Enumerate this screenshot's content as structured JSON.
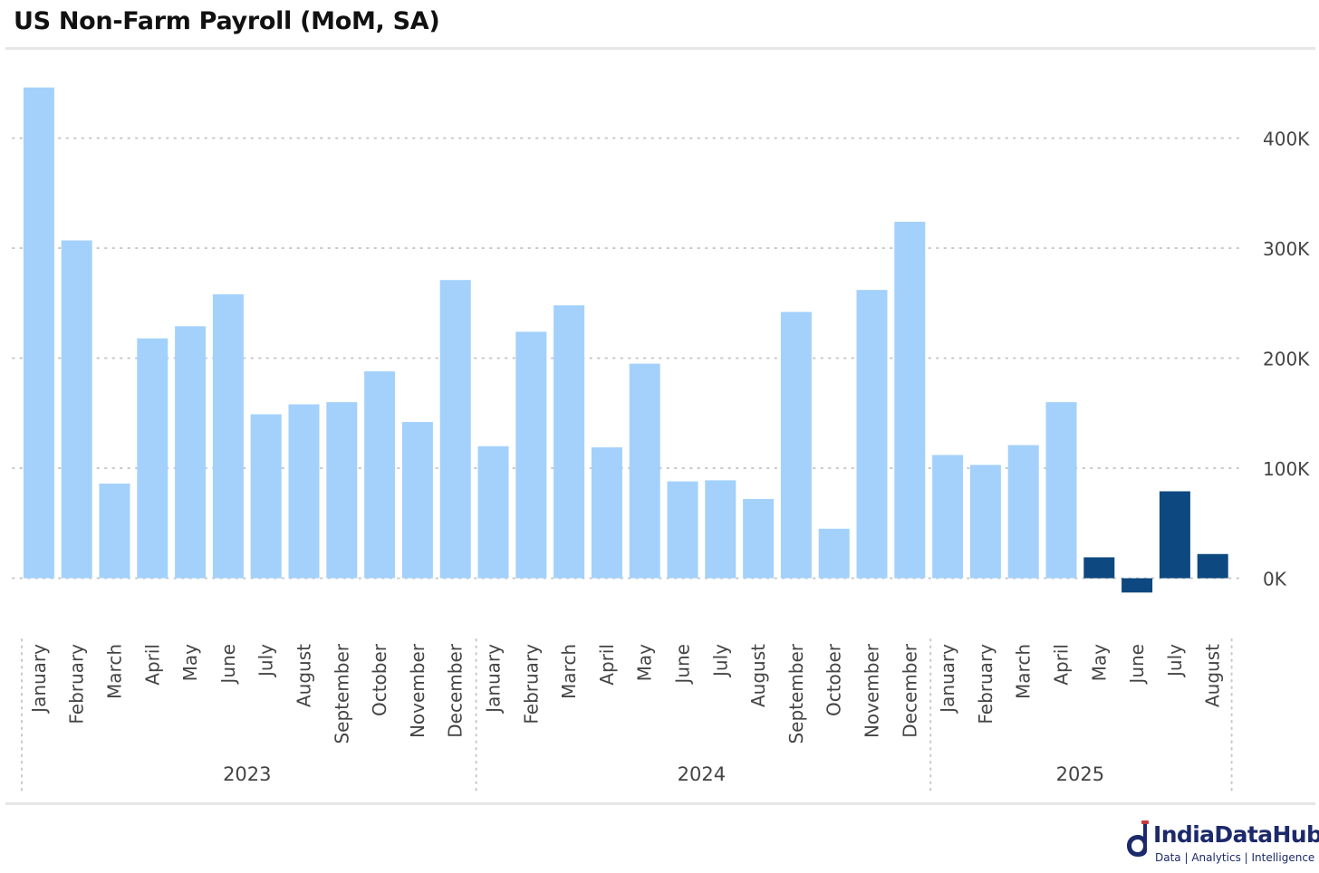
{
  "page": {
    "title": "US Non-Farm Payroll (MoM, SA)"
  },
  "brand": {
    "name": "IndiaDataHub",
    "tagline": "Data | Analytics | Intelligence",
    "color": "#1c2a6b"
  },
  "chart_data": {
    "type": "bar",
    "title": "US Non-Farm Payroll (MoM, SA)",
    "xlabel": "",
    "ylabel": "",
    "units": "jobs, month-on-month change, seasonally adjusted",
    "ylim": [
      -30000,
      460000
    ],
    "yticks": [
      0,
      100000,
      200000,
      300000,
      400000
    ],
    "ytick_labels": [
      "0K",
      "100K",
      "200K",
      "300K",
      "400K"
    ],
    "y_axis_position": "right",
    "grid": true,
    "legend": "none",
    "groups": [
      {
        "year": "2023",
        "months": [
          "January",
          "February",
          "March",
          "April",
          "May",
          "June",
          "July",
          "August",
          "September",
          "October",
          "November",
          "December"
        ],
        "values": [
          446000,
          307000,
          86000,
          218000,
          229000,
          258000,
          149000,
          158000,
          160000,
          188000,
          142000,
          271000
        ],
        "highlight": [
          false,
          false,
          false,
          false,
          false,
          false,
          false,
          false,
          false,
          false,
          false,
          false
        ]
      },
      {
        "year": "2024",
        "months": [
          "January",
          "February",
          "March",
          "April",
          "May",
          "June",
          "July",
          "August",
          "September",
          "October",
          "November",
          "December"
        ],
        "values": [
          120000,
          224000,
          248000,
          119000,
          195000,
          88000,
          89000,
          72000,
          242000,
          45000,
          262000,
          324000
        ],
        "highlight": [
          false,
          false,
          false,
          false,
          false,
          false,
          false,
          false,
          false,
          false,
          false,
          false
        ]
      },
      {
        "year": "2025",
        "months": [
          "January",
          "February",
          "March",
          "April",
          "May",
          "June",
          "July",
          "August"
        ],
        "values": [
          112000,
          103000,
          121000,
          160000,
          19000,
          -13000,
          79000,
          22000
        ],
        "highlight": [
          false,
          false,
          false,
          false,
          true,
          true,
          true,
          true
        ]
      }
    ],
    "colors": {
      "bar": "#a3d1fc",
      "highlight": "#0d4880",
      "grid": "#c8c8c8",
      "text": "#444444"
    }
  }
}
